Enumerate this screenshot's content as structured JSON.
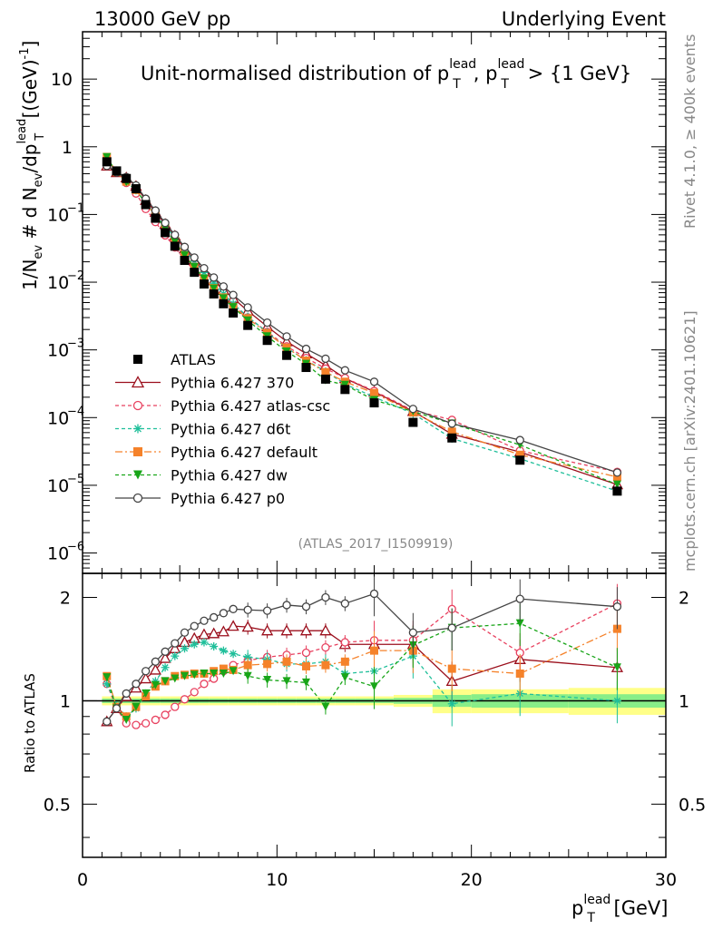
{
  "header": {
    "left": "13000 GeV pp",
    "right": "Underlying Event",
    "side_top": "Rivet 4.1.0, ≥ 400k events",
    "side_bottom": "mcplots.cern.ch [arXiv:2401.10621]"
  },
  "chart_data": [
    {
      "type": "line",
      "title_parts": {
        "a": "Unit-normalised distribution of p",
        "sup": "lead",
        "sub": "T",
        "b": ", p",
        "c": " > {1 GeV}"
      },
      "ylabel_parts": {
        "a": "1/N",
        "ev": "ev",
        "b": " # d N",
        "c": "/dp",
        "lead": "lead",
        "T": "T",
        "d": " [(GeV)",
        "e": "-1",
        "f": "]"
      },
      "yscale": "log",
      "ylim": [
        5e-07,
        50
      ],
      "xlim": [
        0,
        30
      ],
      "yticks": [
        {
          "v": 10,
          "label": "10",
          "exp": ""
        },
        {
          "v": 1,
          "label": "1",
          "exp": ""
        },
        {
          "v": 0.1,
          "label": "10",
          "exp": "−1"
        },
        {
          "v": 0.01,
          "label": "10",
          "exp": "−2"
        },
        {
          "v": 0.001,
          "label": "10",
          "exp": "−3"
        },
        {
          "v": 0.0001,
          "label": "10",
          "exp": "−4"
        },
        {
          "v": 1e-05,
          "label": "10",
          "exp": "−5"
        },
        {
          "v": 1e-06,
          "label": "10",
          "exp": "−6"
        }
      ],
      "watermark": "(ATLAS_2017_I1509919)",
      "legend_position": "middle-left",
      "x": [
        1.25,
        1.75,
        2.25,
        2.75,
        3.25,
        3.75,
        4.25,
        4.75,
        5.25,
        5.75,
        6.25,
        6.75,
        7.25,
        7.75,
        8.5,
        9.5,
        10.5,
        11.5,
        12.5,
        13.5,
        15.0,
        17.0,
        19.0,
        22.5,
        27.5
      ],
      "series": [
        {
          "name": "ATLAS",
          "color": "#000000",
          "marker": "square",
          "values": [
            0.6,
            0.44,
            0.34,
            0.24,
            0.14,
            0.088,
            0.054,
            0.034,
            0.021,
            0.014,
            0.0094,
            0.0067,
            0.0048,
            0.0035,
            0.0023,
            0.00138,
            0.00083,
            0.00055,
            0.00037,
            0.00026,
            0.000165,
            8.5e-05,
            5e-05,
            2.35e-05,
            8.2e-06
          ]
        },
        {
          "name": "Pythia 6.427 370",
          "color": "#9b0f1c",
          "marker": "triangle-open",
          "dash": "",
          "ratio": [
            0.87,
            0.95,
            1.03,
            1.09,
            1.16,
            1.23,
            1.33,
            1.42,
            1.48,
            1.52,
            1.56,
            1.57,
            1.59,
            1.65,
            1.64,
            1.6,
            1.6,
            1.6,
            1.6,
            1.46,
            1.46,
            1.46,
            1.14,
            1.32,
            1.25
          ]
        },
        {
          "name": "Pythia 6.427 atlas-csc",
          "color": "#e8415f",
          "marker": "circle-open",
          "dash": "4,3",
          "ratio": [
            1.12,
            0.95,
            0.86,
            0.85,
            0.86,
            0.88,
            0.91,
            0.96,
            1.01,
            1.06,
            1.12,
            1.16,
            1.22,
            1.27,
            1.31,
            1.34,
            1.36,
            1.38,
            1.43,
            1.48,
            1.5,
            1.5,
            1.85,
            1.38,
            1.92
          ]
        },
        {
          "name": "Pythia 6.427 d6t",
          "color": "#1fbf9a",
          "marker": "star",
          "dash": "4,3",
          "ratio": [
            1.12,
            0.97,
            0.9,
            0.95,
            1.05,
            1.14,
            1.25,
            1.35,
            1.42,
            1.46,
            1.48,
            1.44,
            1.4,
            1.37,
            1.34,
            1.32,
            1.28,
            1.28,
            1.3,
            1.2,
            1.22,
            1.35,
            0.98,
            1.05,
            1.0
          ]
        },
        {
          "name": "Pythia 6.427 default",
          "color": "#f5822a",
          "marker": "square",
          "dash": "8,3,2,3",
          "ratio": [
            1.18,
            0.96,
            0.9,
            0.96,
            1.03,
            1.1,
            1.14,
            1.18,
            1.19,
            1.2,
            1.2,
            1.22,
            1.24,
            1.23,
            1.27,
            1.28,
            1.3,
            1.26,
            1.27,
            1.3,
            1.4,
            1.4,
            1.24,
            1.2,
            1.62
          ]
        },
        {
          "name": "Pythia 6.427 dw",
          "color": "#18a518",
          "marker": "triangle-down",
          "dash": "4,3",
          "ratio": [
            1.17,
            0.95,
            0.88,
            0.96,
            1.05,
            1.11,
            1.14,
            1.16,
            1.18,
            1.19,
            1.2,
            1.2,
            1.2,
            1.22,
            1.18,
            1.15,
            1.14,
            1.13,
            0.96,
            1.17,
            1.1,
            1.45,
            1.63,
            1.68,
            1.25
          ]
        },
        {
          "name": "Pythia 6.427 p0",
          "color": "#444444",
          "marker": "circle-open",
          "dash": "",
          "ratio": [
            0.87,
            0.95,
            1.05,
            1.12,
            1.22,
            1.3,
            1.39,
            1.47,
            1.58,
            1.65,
            1.71,
            1.75,
            1.8,
            1.85,
            1.84,
            1.83,
            1.9,
            1.88,
            2.0,
            1.92,
            2.05,
            1.58,
            1.63,
            1.98,
            1.88
          ]
        }
      ]
    },
    {
      "type": "line",
      "ylabel": "Ratio to ATLAS",
      "xlabel_a": "p",
      "xlabel_lead": "lead",
      "xlabel_T": "T",
      "xlabel_b": " [GeV]",
      "yscale": "log",
      "ylim": [
        0.35,
        2.35
      ],
      "xlim": [
        0,
        30
      ],
      "xticks": [
        {
          "v": 0,
          "label": "0"
        },
        {
          "v": 10,
          "label": "10"
        },
        {
          "v": 20,
          "label": "20"
        },
        {
          "v": 30,
          "label": "30"
        }
      ],
      "yticks": [
        {
          "v": 2,
          "label": "2"
        },
        {
          "v": 1,
          "label": "1"
        },
        {
          "v": 0.5,
          "label": "0.5"
        }
      ]
    }
  ]
}
